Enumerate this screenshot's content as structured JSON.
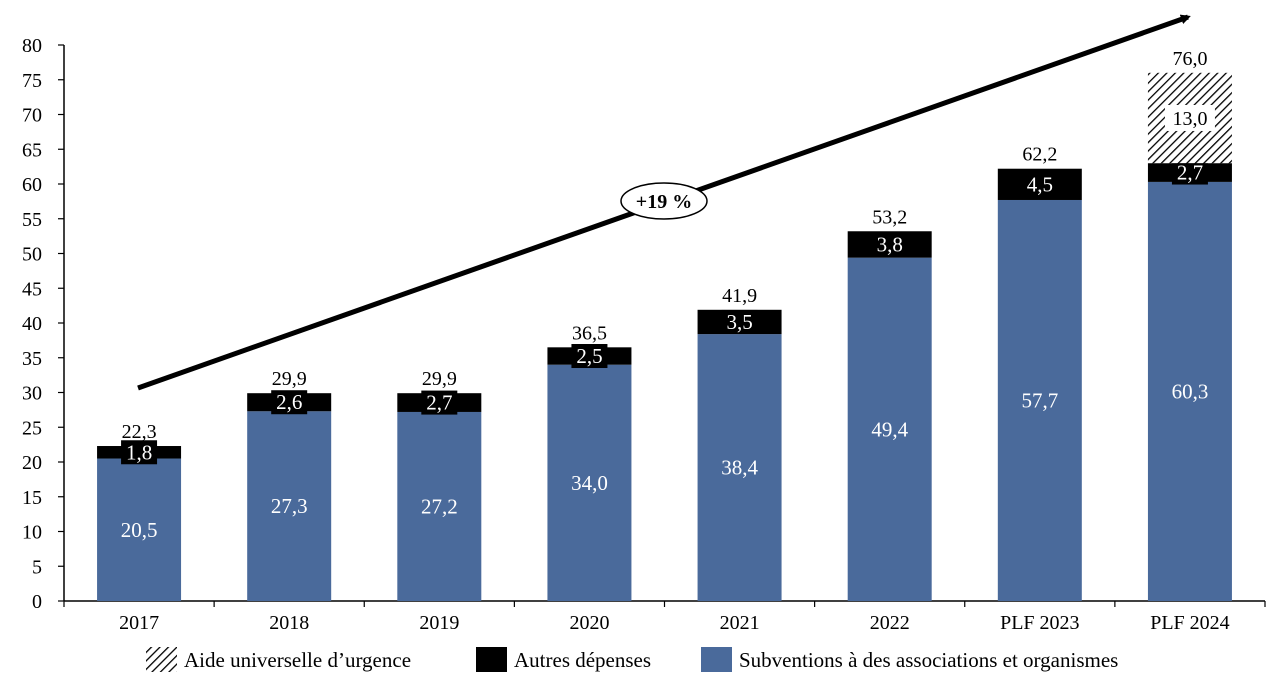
{
  "chart_data": {
    "type": "bar",
    "stacked": true,
    "categories": [
      "2017",
      "2018",
      "2019",
      "2020",
      "2021",
      "2022",
      "PLF 2023",
      "PLF 2024"
    ],
    "series": [
      {
        "name": "Subventions à des associations et organismes",
        "color": "#4a6a9b",
        "values": [
          20.5,
          27.3,
          27.2,
          34.0,
          38.4,
          49.4,
          57.7,
          60.3
        ],
        "labels": [
          "20,5",
          "27,3",
          "27,2",
          "34,0",
          "38,4",
          "49,4",
          "57,7",
          "60,3"
        ]
      },
      {
        "name": "Autres dépenses",
        "color": "#000000",
        "values": [
          1.8,
          2.6,
          2.7,
          2.5,
          3.5,
          3.8,
          4.5,
          2.7
        ],
        "labels": [
          "1,8",
          "2,6",
          "2,7",
          "2,5",
          "3,5",
          "3,8",
          "4,5",
          "2,7"
        ]
      },
      {
        "name": "Aide universelle d’urgence",
        "pattern": "hatch",
        "values": [
          0,
          0,
          0,
          0,
          0,
          0,
          0,
          13.0
        ],
        "labels": [
          "",
          "",
          "",
          "",
          "",
          "",
          "",
          "13,0"
        ]
      }
    ],
    "totals": [
      "22,3",
      "29,9",
      "29,9",
      "36,5",
      "41,9",
      "53,2",
      "62,2",
      "76,0"
    ],
    "ylim": [
      0,
      80
    ],
    "yticks": [
      "0",
      "5",
      "10",
      "15",
      "20",
      "25",
      "30",
      "35",
      "40",
      "45",
      "50",
      "55",
      "60",
      "65",
      "70",
      "75",
      "80"
    ],
    "yticks_values": [
      0,
      5,
      10,
      15,
      20,
      25,
      30,
      35,
      40,
      45,
      50,
      55,
      60,
      65,
      70,
      75,
      80
    ],
    "title": "",
    "xlabel": "",
    "ylabel": "",
    "grid": false,
    "legend_position": "bottom",
    "legend_order": [
      2,
      1,
      0
    ],
    "annotation": {
      "text": "+19 %",
      "type": "arrow-trend"
    }
  }
}
